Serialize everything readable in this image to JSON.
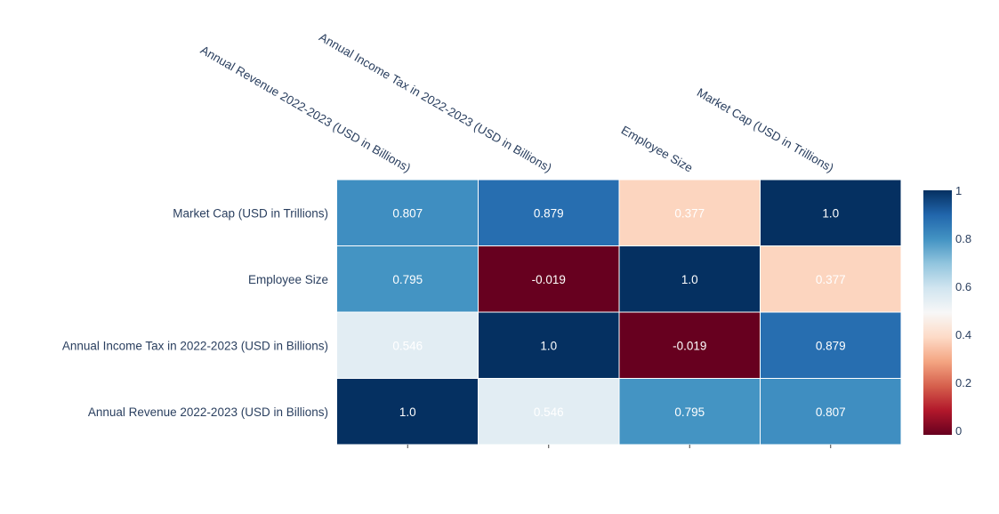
{
  "chart_data": {
    "type": "heatmap",
    "title": "",
    "x_labels": [
      "Annual Revenue 2022-2023 (USD in Billions)",
      "Annual Income Tax in 2022-2023 (USD in Billions)",
      "Employee Size",
      "Market Cap (USD in Trillions)"
    ],
    "y_labels": [
      "Annual Revenue 2022-2023 (USD in Billions)",
      "Annual Income Tax in 2022-2023 (USD in Billions)",
      "Employee Size",
      "Market Cap (USD in Trillions)"
    ],
    "z": [
      [
        1.0,
        0.546,
        0.795,
        0.807
      ],
      [
        0.546,
        1.0,
        -0.019,
        0.879
      ],
      [
        0.795,
        -0.019,
        1.0,
        0.377
      ],
      [
        0.807,
        0.879,
        0.377,
        1.0
      ]
    ],
    "cell_text": [
      [
        "1.0",
        "0.546",
        "0.795",
        "0.807"
      ],
      [
        "0.546",
        "1.0",
        "-0.019",
        "0.879"
      ],
      [
        "0.795",
        "-0.019",
        "1.0",
        "0.377"
      ],
      [
        "0.807",
        "0.879",
        "0.377",
        "1.0"
      ]
    ],
    "colorscale": "RdBu",
    "colorscale_stops": [
      "#67001f",
      "#b2182b",
      "#d6604d",
      "#f4a582",
      "#fddbc7",
      "#f7f7f7",
      "#d1e5f0",
      "#92c5de",
      "#4393c3",
      "#2166ac",
      "#053061"
    ],
    "zmin": -0.019,
    "zmax": 1.0,
    "colorbar": {
      "tick_labels": [
        "0",
        "0.2",
        "0.4",
        "0.6",
        "0.8",
        "1"
      ],
      "tick_values": [
        0,
        0.2,
        0.4,
        0.6,
        0.8,
        1.0
      ]
    },
    "x_axis_side": "top",
    "grid": false,
    "legend": "colorbar right"
  }
}
